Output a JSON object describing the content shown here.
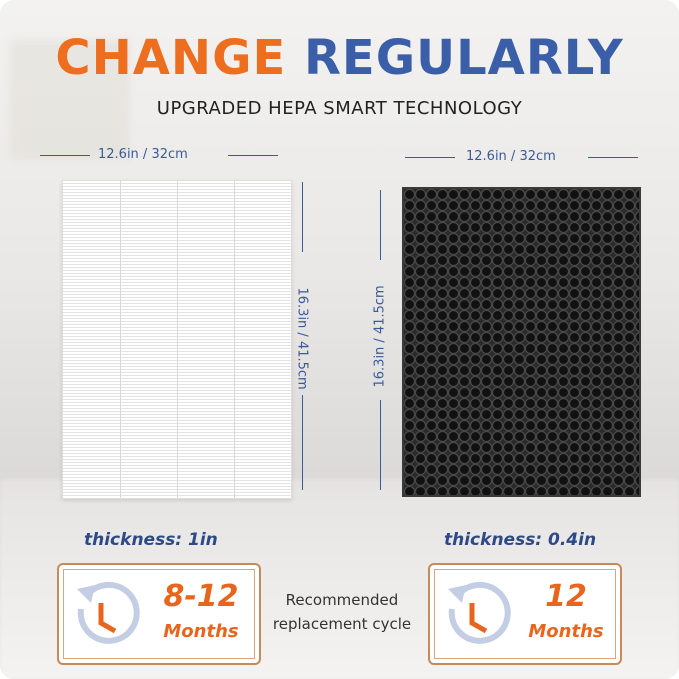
{
  "title": {
    "word1": "CHANGE",
    "word2": "REGULARLY"
  },
  "subtitle": "UPGRADED HEPA SMART TECHNOLOGY",
  "hepa_filter": {
    "width_label": "12.6in / 32cm",
    "height_label": "16.3in / 41.5cm",
    "thickness": "thickness: 1in",
    "cycle_value": "8-12",
    "cycle_unit": "Months"
  },
  "carbon_filter": {
    "width_label": "12.6in / 32cm",
    "height_label": "16.3in / 41.5cm",
    "thickness": "thickness: 0.4in",
    "cycle_value": "12",
    "cycle_unit": "Months"
  },
  "center_caption": {
    "line1": "Recommended",
    "line2": "replacement cycle"
  },
  "colors": {
    "orange": "#ee6e1f",
    "blue": "#3a5fa8",
    "dim_blue": "#3a5b9a"
  }
}
